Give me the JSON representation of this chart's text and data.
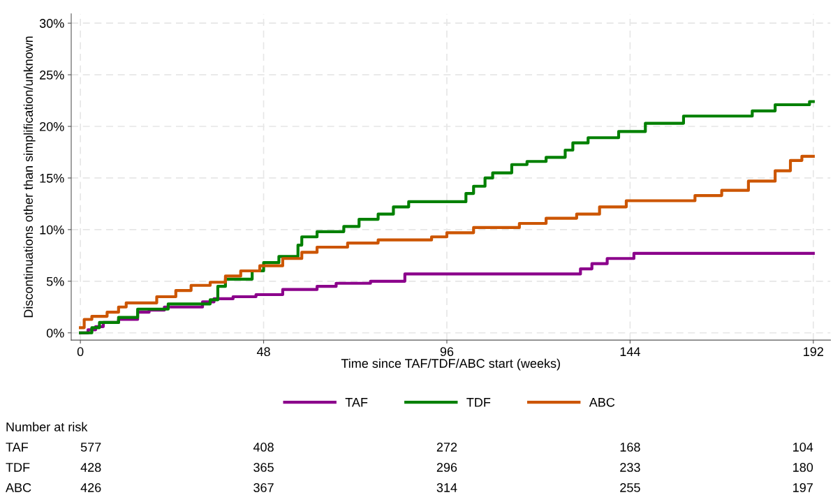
{
  "chart_data": {
    "type": "step",
    "xlabel": "Time since TAF/TDF/ABC start (weeks)",
    "ylabel": "Discontinuations other than simplification/unknown",
    "xlim": [
      -2.4,
      196.5
    ],
    "xticks": [
      0,
      48,
      96,
      144,
      192
    ],
    "ylim": [
      -0.7,
      30.9
    ],
    "yticks": [
      {
        "value": 0,
        "label": "0%"
      },
      {
        "value": 5,
        "label": "5%"
      },
      {
        "value": 10,
        "label": "10%"
      },
      {
        "value": 15,
        "label": "15%"
      },
      {
        "value": 20,
        "label": "20%"
      },
      {
        "value": 25,
        "label": "25%"
      },
      {
        "value": 30,
        "label": "30%"
      }
    ],
    "grid": true,
    "legend": "bottom",
    "line_style": "solid",
    "marker": "none",
    "series": [
      {
        "name": "TAF",
        "color": "#8b008b",
        "x": [
          0,
          2,
          4,
          6,
          10,
          15,
          18,
          22,
          32,
          35,
          40,
          46,
          53,
          62,
          67,
          76,
          85,
          131,
          134,
          138,
          145,
          192
        ],
        "values": [
          0,
          0.3,
          0.6,
          1.0,
          1.3,
          2.0,
          2.2,
          2.5,
          3.0,
          3.3,
          3.5,
          3.7,
          4.2,
          4.5,
          4.8,
          5.0,
          5.7,
          6.2,
          6.7,
          7.2,
          7.7,
          7.7
        ]
      },
      {
        "name": "TDF",
        "color": "#008000",
        "x": [
          0,
          3,
          5,
          10,
          15,
          23,
          34,
          36,
          38,
          45,
          48,
          52,
          57,
          58,
          62,
          69,
          73,
          78,
          82,
          86,
          101,
          103,
          106,
          108,
          113,
          117,
          122,
          127,
          129,
          133,
          141,
          148,
          158,
          176,
          182,
          191,
          192
        ],
        "values": [
          0,
          0.5,
          1.0,
          1.5,
          2.3,
          2.8,
          3.2,
          4.5,
          5.2,
          6.0,
          6.8,
          7.4,
          8.5,
          9.3,
          9.8,
          10.3,
          11.0,
          11.5,
          12.2,
          12.7,
          13.5,
          14.2,
          15.0,
          15.5,
          16.3,
          16.6,
          17.0,
          17.7,
          18.4,
          18.9,
          19.5,
          20.3,
          21.0,
          21.5,
          22.1,
          22.4,
          22.4
        ]
      },
      {
        "name": "ABC",
        "color": "#cc5500",
        "x": [
          0,
          1,
          3,
          7,
          10,
          12,
          20,
          25,
          29,
          34,
          38,
          42,
          47,
          53,
          58,
          62,
          70,
          78,
          92,
          96,
          103,
          115,
          122,
          130,
          136,
          143,
          161,
          168,
          175,
          182,
          186,
          189,
          192
        ],
        "values": [
          0.5,
          1.3,
          1.6,
          2.0,
          2.5,
          2.9,
          3.5,
          4.1,
          4.6,
          4.9,
          5.5,
          6.0,
          6.5,
          7.2,
          7.8,
          8.3,
          8.7,
          9.0,
          9.3,
          9.7,
          10.2,
          10.6,
          11.1,
          11.5,
          12.2,
          12.8,
          13.3,
          13.8,
          14.7,
          15.7,
          16.7,
          17.1,
          17.1
        ]
      }
    ],
    "annotations": [
      "Number at risk",
      "TAF",
      "577",
      "408",
      "272",
      "168",
      "104",
      "TDF",
      "428",
      "365",
      "296",
      "233",
      "180",
      "ABC",
      "426",
      "367",
      "314",
      "255",
      "197"
    ]
  }
}
